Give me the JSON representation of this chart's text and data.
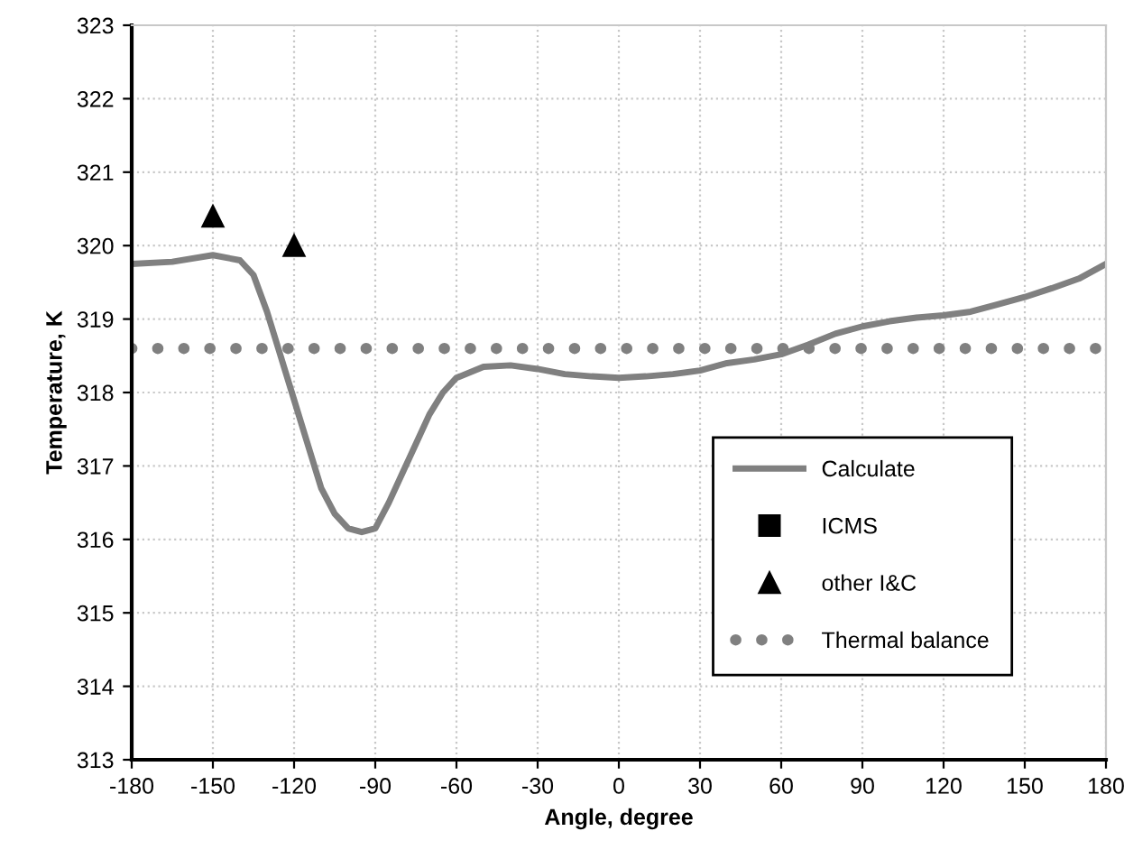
{
  "chart_data": {
    "type": "line",
    "xlabel": "Angle, degree",
    "ylabel": "Temperature, K",
    "xlim": [
      -180,
      180
    ],
    "xticks": [
      -180,
      -150,
      -120,
      -90,
      -60,
      -30,
      0,
      30,
      60,
      90,
      120,
      150,
      180
    ],
    "ylim": [
      313,
      323
    ],
    "yticks": [
      313,
      314,
      315,
      316,
      317,
      318,
      319,
      320,
      321,
      322,
      323
    ],
    "grid": true,
    "legend": "bottom right",
    "series": [
      {
        "name": "Calculate",
        "color": "#808080",
        "line_style": "solid",
        "marker": "none",
        "x": [
          -180,
          -165,
          -150,
          -140,
          -135,
          -130,
          -125,
          -120,
          -115,
          -110,
          -105,
          -100,
          -95,
          -90,
          -85,
          -80,
          -75,
          -70,
          -65,
          -60,
          -50,
          -40,
          -30,
          -20,
          -10,
          0,
          10,
          20,
          30,
          40,
          50,
          60,
          70,
          80,
          90,
          100,
          110,
          120,
          130,
          140,
          150,
          160,
          170,
          180
        ],
        "values": [
          319.75,
          319.78,
          319.87,
          319.8,
          319.6,
          319.1,
          318.5,
          317.9,
          317.3,
          316.7,
          316.35,
          316.15,
          316.1,
          316.15,
          316.5,
          316.9,
          317.3,
          317.7,
          318.0,
          318.2,
          318.35,
          318.37,
          318.32,
          318.25,
          318.22,
          318.2,
          318.22,
          318.25,
          318.3,
          318.4,
          318.45,
          318.52,
          318.65,
          318.8,
          318.9,
          318.97,
          319.02,
          319.05,
          319.1,
          319.2,
          319.3,
          319.42,
          319.55,
          319.75
        ]
      },
      {
        "name": "ICMS",
        "type": "scatter",
        "color": "#000000",
        "marker": "square"
      },
      {
        "name": "other I&C",
        "type": "scatter",
        "color": "#000000",
        "marker": "triangle",
        "x": [
          -150,
          -120
        ],
        "values": [
          320.4,
          320.0
        ]
      },
      {
        "name": "Thermal balance",
        "color": "#808080",
        "line_style": "dotted",
        "x": [
          -180,
          180
        ],
        "values": [
          318.6,
          318.6
        ]
      }
    ]
  }
}
